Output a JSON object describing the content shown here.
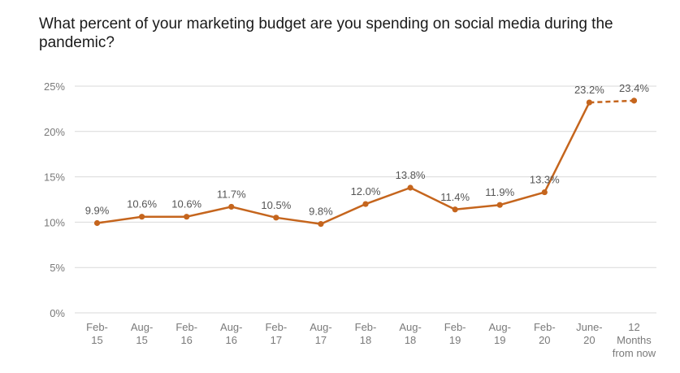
{
  "chart_data": {
    "type": "line",
    "title": "What percent of your marketing budget are you spending on social media during the pandemic?",
    "categories": [
      "Feb-15",
      "Aug-15",
      "Feb-16",
      "Aug-16",
      "Feb-17",
      "Aug-17",
      "Feb-18",
      "Aug-18",
      "Feb-19",
      "Aug-19",
      "Feb-20",
      "June-20",
      "12 Months from now"
    ],
    "category_lines": [
      [
        "Feb-",
        "15"
      ],
      [
        "Aug-",
        "15"
      ],
      [
        "Feb-",
        "16"
      ],
      [
        "Aug-",
        "16"
      ],
      [
        "Feb-",
        "17"
      ],
      [
        "Aug-",
        "17"
      ],
      [
        "Feb-",
        "18"
      ],
      [
        "Aug-",
        "18"
      ],
      [
        "Feb-",
        "19"
      ],
      [
        "Aug-",
        "19"
      ],
      [
        "Feb-",
        "20"
      ],
      [
        "June-",
        "20"
      ],
      [
        "12",
        "Months",
        "from now"
      ]
    ],
    "values": [
      9.9,
      10.6,
      10.6,
      11.7,
      10.5,
      9.8,
      12.0,
      13.8,
      11.4,
      11.9,
      13.3,
      23.2,
      23.4
    ],
    "data_labels": [
      "9.9%",
      "10.6%",
      "10.6%",
      "11.7%",
      "10.5%",
      "9.8%",
      "12.0%",
      "13.8%",
      "11.4%",
      "11.9%",
      "13.3%",
      "23.2%",
      "23.4%"
    ],
    "projected_from_index": 11,
    "ylim": [
      0,
      25
    ],
    "y_ticks": [
      0,
      5,
      10,
      15,
      20,
      25
    ],
    "y_tick_labels": [
      "0%",
      "5%",
      "10%",
      "15%",
      "20%",
      "25%"
    ],
    "xlabel": "",
    "ylabel": "",
    "grid": "horizontal",
    "legend": "none",
    "line_color": "#c5651d",
    "grid_color": "#d9d9d9"
  }
}
